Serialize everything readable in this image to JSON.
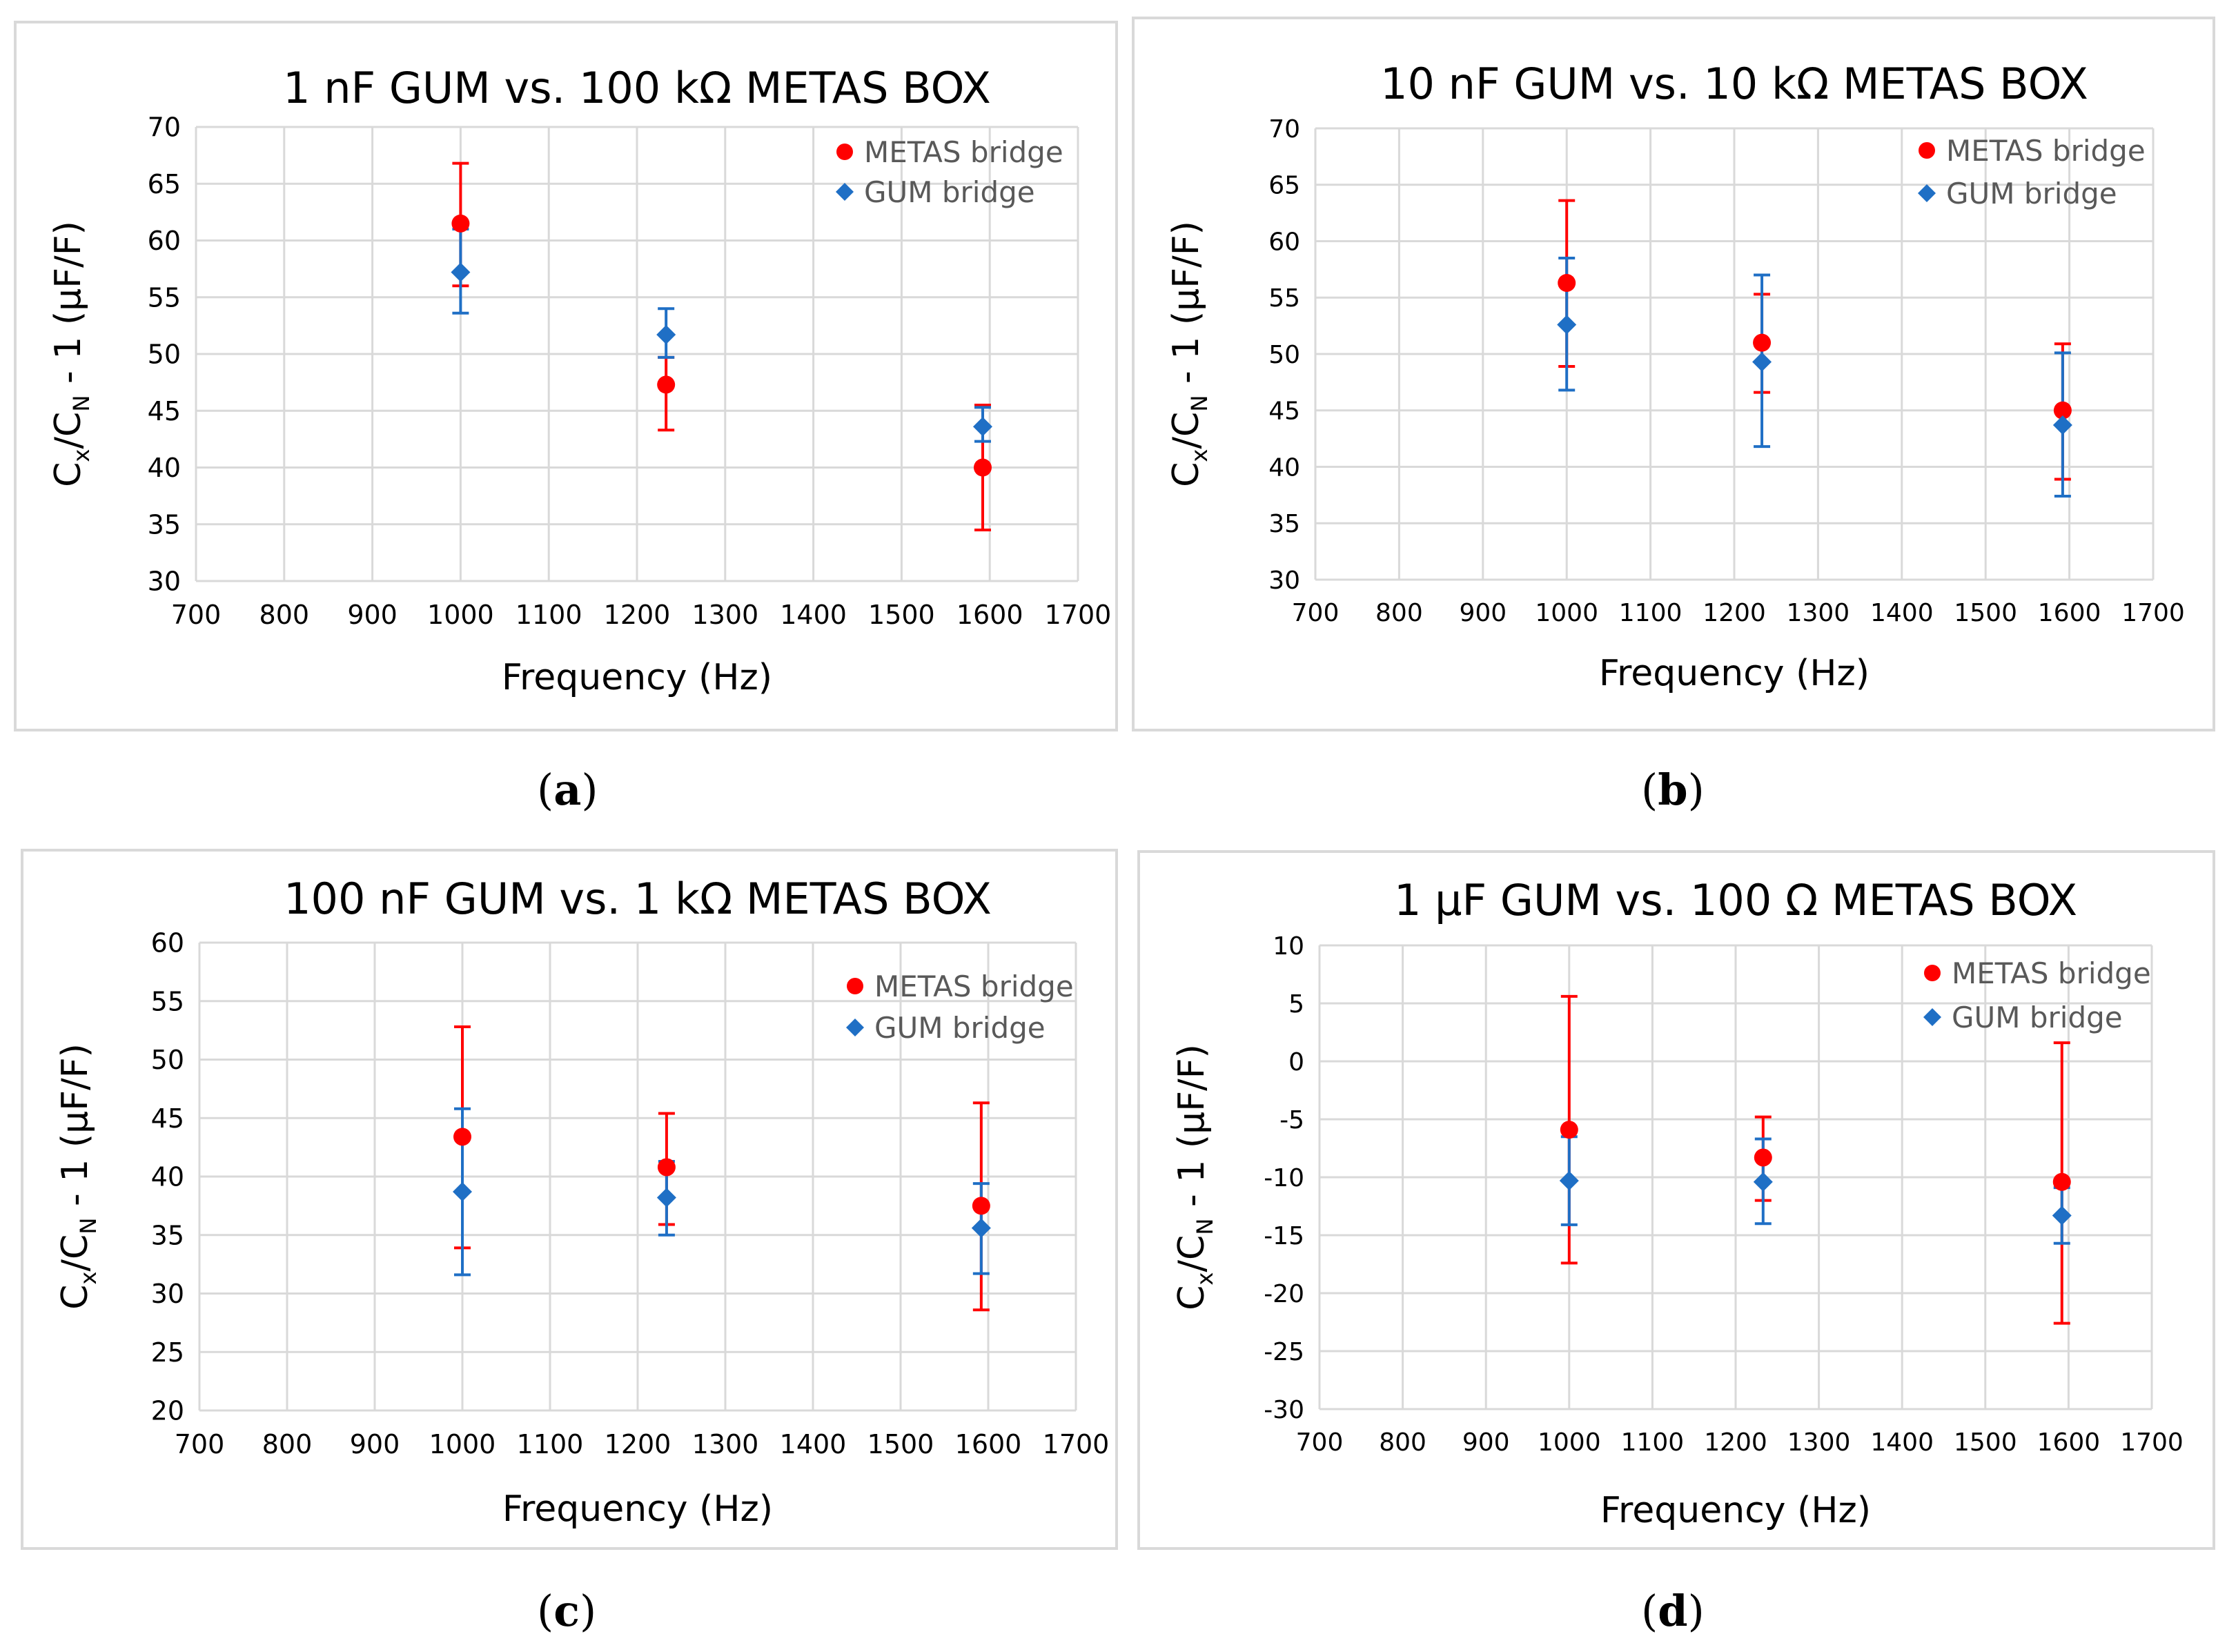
{
  "colors": {
    "metas": "#ff0000",
    "gum": "#1f6fc5",
    "grid": "#d9d9d9",
    "axis_text": "#000000",
    "legend_text": "#595959",
    "border": "#d9d9d9"
  },
  "captions": {
    "a": {
      "open": "(",
      "letter": "a",
      "close": ")"
    },
    "b": {
      "open": "(",
      "letter": "b",
      "close": ")"
    },
    "c": {
      "open": "(",
      "letter": "c",
      "close": ")"
    },
    "d": {
      "open": "(",
      "letter": "d",
      "close": ")"
    }
  },
  "chart_data": [
    {
      "id": "a",
      "type": "scatter",
      "title": "1 nF GUM vs. 100 kΩ METAS BOX",
      "xlabel": "Frequency (Hz)",
      "ylabel": {
        "main": "C",
        "sub1": "x",
        "mid": "/C",
        "sub2": "N",
        "rest": " - 1  (µF/F)"
      },
      "xlim": [
        700,
        1700
      ],
      "ylim": [
        30,
        70
      ],
      "xticks": [
        700,
        800,
        900,
        1000,
        1100,
        1200,
        1300,
        1400,
        1500,
        1600,
        1700
      ],
      "yticks": [
        30,
        35,
        40,
        45,
        50,
        55,
        60,
        65,
        70
      ],
      "grid": true,
      "legend_position": "top-right",
      "series": [
        {
          "name": "METAS bridge",
          "marker": "circle",
          "color": "#ff0000",
          "x": [
            1000,
            1233,
            1592
          ],
          "y": [
            61.5,
            47.3,
            40.0
          ],
          "err_low": [
            56.0,
            43.3,
            34.5
          ],
          "err_high": [
            66.8,
            49.7,
            45.5
          ]
        },
        {
          "name": "GUM bridge",
          "marker": "diamond",
          "color": "#1f6fc5",
          "x": [
            1000,
            1233,
            1592
          ],
          "y": [
            57.2,
            51.7,
            43.6
          ],
          "err_low": [
            53.6,
            49.7,
            42.3
          ],
          "err_high": [
            61.0,
            54.0,
            45.3
          ]
        }
      ]
    },
    {
      "id": "b",
      "type": "scatter",
      "title": "10 nF GUM vs. 10 kΩ METAS BOX",
      "xlabel": "Frequency (Hz)",
      "ylabel": {
        "main": "C",
        "sub1": "x",
        "mid": "/C",
        "sub2": "N",
        "rest": " - 1  (µF/F)"
      },
      "xlim": [
        700,
        1700
      ],
      "ylim": [
        30,
        70
      ],
      "xticks": [
        700,
        800,
        900,
        1000,
        1100,
        1200,
        1300,
        1400,
        1500,
        1600,
        1700
      ],
      "yticks": [
        30,
        35,
        40,
        45,
        50,
        55,
        60,
        65,
        70
      ],
      "grid": true,
      "legend_position": "top-right",
      "series": [
        {
          "name": "METAS bridge",
          "marker": "circle",
          "color": "#ff0000",
          "x": [
            1000,
            1233,
            1592
          ],
          "y": [
            56.3,
            51.0,
            45.0
          ],
          "err_low": [
            48.9,
            46.6,
            38.9
          ],
          "err_high": [
            63.6,
            55.3,
            50.9
          ]
        },
        {
          "name": "GUM bridge",
          "marker": "diamond",
          "color": "#1f6fc5",
          "x": [
            1000,
            1233,
            1592
          ],
          "y": [
            52.6,
            49.3,
            43.7
          ],
          "err_low": [
            46.8,
            41.8,
            37.4
          ],
          "err_high": [
            58.5,
            57.0,
            50.1
          ]
        }
      ]
    },
    {
      "id": "c",
      "type": "scatter",
      "title": "100 nF GUM vs. 1 kΩ METAS BOX",
      "xlabel": "Frequency (Hz)",
      "ylabel": {
        "main": "C",
        "sub1": "x",
        "mid": "/C",
        "sub2": "N",
        "rest": " - 1  (µF/F)"
      },
      "xlim": [
        700,
        1700
      ],
      "ylim": [
        20,
        60
      ],
      "xticks": [
        700,
        800,
        900,
        1000,
        1100,
        1200,
        1300,
        1400,
        1500,
        1600,
        1700
      ],
      "yticks": [
        20,
        25,
        30,
        35,
        40,
        45,
        50,
        55,
        60
      ],
      "grid": true,
      "legend_position": "top-right",
      "series": [
        {
          "name": "METAS bridge",
          "marker": "circle",
          "color": "#ff0000",
          "x": [
            1000,
            1233,
            1592
          ],
          "y": [
            43.4,
            40.8,
            37.5
          ],
          "err_low": [
            33.9,
            35.9,
            28.6
          ],
          "err_high": [
            52.8,
            45.4,
            46.3
          ]
        },
        {
          "name": "GUM bridge",
          "marker": "diamond",
          "color": "#1f6fc5",
          "x": [
            1000,
            1233,
            1592
          ],
          "y": [
            38.7,
            38.2,
            35.6
          ],
          "err_low": [
            31.6,
            35.0,
            31.7
          ],
          "err_high": [
            45.8,
            41.3,
            39.4
          ]
        }
      ]
    },
    {
      "id": "d",
      "type": "scatter",
      "title": "1 µF GUM vs. 100 Ω METAS BOX",
      "xlabel": "Frequency (Hz)",
      "ylabel": {
        "main": "C",
        "sub1": "x",
        "mid": "/C",
        "sub2": "N",
        "rest": " - 1  (µF/F)"
      },
      "xlim": [
        700,
        1700
      ],
      "ylim": [
        -30,
        10
      ],
      "xticks": [
        700,
        800,
        900,
        1000,
        1100,
        1200,
        1300,
        1400,
        1500,
        1600,
        1700
      ],
      "yticks": [
        -30,
        -25,
        -20,
        -15,
        -10,
        -5,
        0,
        5,
        10
      ],
      "grid": true,
      "legend_position": "top-right",
      "series": [
        {
          "name": "METAS bridge",
          "marker": "circle",
          "color": "#ff0000",
          "x": [
            1000,
            1233,
            1592
          ],
          "y": [
            -5.9,
            -8.3,
            -10.4
          ],
          "err_low": [
            -17.4,
            -12.0,
            -22.6
          ],
          "err_high": [
            5.6,
            -4.8,
            1.6
          ]
        },
        {
          "name": "GUM bridge",
          "marker": "diamond",
          "color": "#1f6fc5",
          "x": [
            1000,
            1233,
            1592
          ],
          "y": [
            -10.3,
            -10.4,
            -13.3
          ],
          "err_low": [
            -14.1,
            -14.0,
            -15.7
          ],
          "err_high": [
            -6.5,
            -6.7,
            -10.9
          ]
        }
      ]
    }
  ]
}
